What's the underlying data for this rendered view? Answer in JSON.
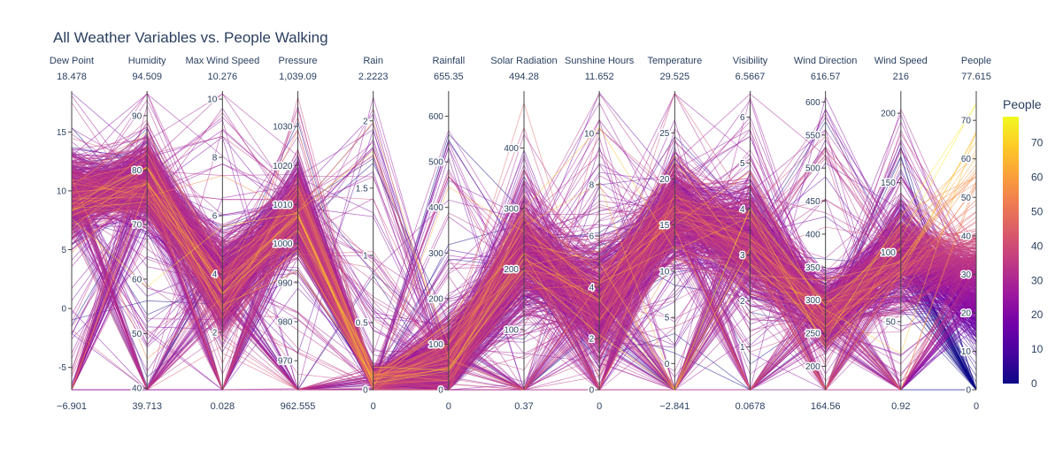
{
  "title": "All Weather Variables vs. People Walking",
  "chart_data": {
    "type": "parallel_coordinates",
    "title": "All Weather Variables vs. People Walking",
    "color_variable": "People",
    "colorscale": [
      "#0d0887",
      "#46039f",
      "#7201a8",
      "#9c179e",
      "#bd3786",
      "#d8576b",
      "#ed7953",
      "#fb9f3a",
      "#fdca26",
      "#f0f921"
    ],
    "colorbar": {
      "title": "People",
      "range": [
        0,
        77.615
      ],
      "ticks": [
        0,
        10,
        20,
        30,
        40,
        50,
        60,
        70
      ]
    },
    "dimensions": [
      {
        "name": "Dew Point",
        "min": -6.901,
        "max": 18.478,
        "min_label": "−6.901",
        "max_label": "18.478",
        "ticks": [
          -5,
          0,
          5,
          10,
          15
        ]
      },
      {
        "name": "Humidity",
        "min": 39.713,
        "max": 94.509,
        "min_label": "39.713",
        "max_label": "94.509",
        "ticks": [
          40,
          50,
          60,
          70,
          80,
          90
        ]
      },
      {
        "name": "Max Wind Speed",
        "min": 0.028,
        "max": 10.276,
        "min_label": "0.028",
        "max_label": "10.276",
        "ticks": [
          2,
          4,
          6,
          8,
          10
        ]
      },
      {
        "name": "Pressure",
        "min": 962.555,
        "max": 1039.09,
        "min_label": "962.555",
        "max_label": "1,039.09",
        "ticks": [
          970,
          980,
          990,
          1000,
          1010,
          1020,
          1030
        ]
      },
      {
        "name": "Rain",
        "min": 0,
        "max": 2.2223,
        "min_label": "0",
        "max_label": "2.2223",
        "ticks": [
          0,
          0.5,
          1,
          1.5,
          2
        ]
      },
      {
        "name": "Rainfall",
        "min": 0,
        "max": 655.35,
        "min_label": "0",
        "max_label": "655.35",
        "ticks": [
          0,
          100,
          200,
          300,
          400,
          500,
          600
        ]
      },
      {
        "name": "Solar Radiation",
        "min": 0.37,
        "max": 494.28,
        "min_label": "0.37",
        "max_label": "494.28",
        "ticks": [
          100,
          200,
          300,
          400
        ]
      },
      {
        "name": "Sunshine Hours",
        "min": 0,
        "max": 11.652,
        "min_label": "0",
        "max_label": "11.652",
        "ticks": [
          0,
          2,
          4,
          6,
          8,
          10
        ]
      },
      {
        "name": "Temperature",
        "min": -2.841,
        "max": 29.525,
        "min_label": "−2.841",
        "max_label": "29.525",
        "ticks": [
          0,
          5,
          10,
          15,
          20,
          25
        ]
      },
      {
        "name": "Visibility",
        "min": 0.0678,
        "max": 6.5667,
        "min_label": "0.0678",
        "max_label": "6.5667",
        "ticks": [
          1,
          2,
          3,
          4,
          5,
          6
        ]
      },
      {
        "name": "Wind Direction",
        "min": 164.56,
        "max": 616.57,
        "min_label": "164.56",
        "max_label": "616.57",
        "ticks": [
          200,
          250,
          300,
          350,
          400,
          450,
          500,
          550,
          600
        ]
      },
      {
        "name": "Wind Speed",
        "min": 0.92,
        "max": 216,
        "min_label": "0.92",
        "max_label": "216",
        "ticks": [
          50,
          100,
          150,
          200
        ]
      },
      {
        "name": "People",
        "min": 0,
        "max": 77.615,
        "min_label": "0",
        "max_label": "77.615",
        "ticks": [
          0,
          10,
          20,
          30,
          40,
          50,
          60,
          70
        ]
      }
    ]
  }
}
